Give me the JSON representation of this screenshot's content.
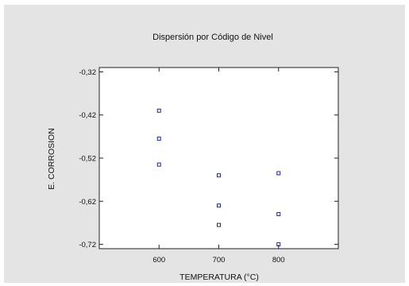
{
  "chart_data": {
    "type": "scatter",
    "title": "Dispersión por Código de Nivel",
    "xlabel": "TEMPERATURA (°C)",
    "ylabel": "E. CORROSION",
    "xlim": [
      500,
      900
    ],
    "ylim": [
      -0.73,
      -0.31
    ],
    "x_ticks": [
      600,
      700,
      800
    ],
    "x_tick_labels": [
      "600",
      "700",
      "800"
    ],
    "y_ticks": [
      -0.32,
      -0.42,
      -0.52,
      -0.62,
      -0.72
    ],
    "y_tick_labels": [
      "-0,32",
      "-0,42",
      "-0,52",
      "-0,62",
      "-0,72"
    ],
    "grid": false,
    "marker": "open-square",
    "colors": {
      "marker": "#1f2a8c",
      "axis": "#222222",
      "panel": "#e4e4e4",
      "plot_area": "#ffffff"
    },
    "series": [
      {
        "x": [
          600,
          600,
          600,
          700,
          700,
          700,
          800,
          800,
          800
        ],
        "y": [
          -0.41,
          -0.475,
          -0.535,
          -0.56,
          -0.63,
          -0.675,
          -0.555,
          -0.65,
          -0.72
        ]
      }
    ]
  }
}
